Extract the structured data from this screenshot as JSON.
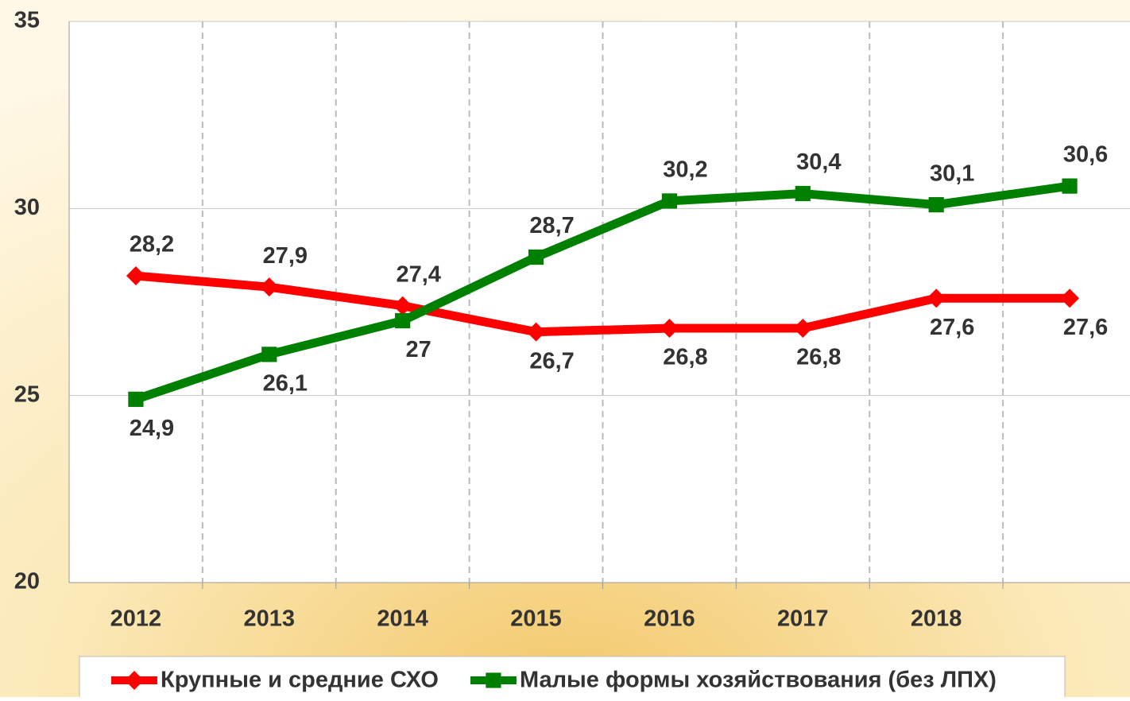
{
  "chart_data": {
    "type": "line",
    "categories": [
      "2012",
      "2013",
      "2014",
      "2015",
      "2016",
      "2017",
      "2018",
      null
    ],
    "series": [
      {
        "name": "Крупные и средние СХО",
        "color": "#ff0000",
        "marker": "diamond",
        "values": [
          28.2,
          27.9,
          27.4,
          26.7,
          26.8,
          26.8,
          27.6,
          27.6
        ],
        "value_labels": [
          "28,2",
          "27,9",
          "27,4",
          "26,7",
          "26,8",
          "26,8",
          "27,6",
          "27,6"
        ]
      },
      {
        "name": "Малые формы хозяйствования (без ЛПХ)",
        "color": "#008000",
        "marker": "square",
        "values": [
          24.9,
          26.1,
          27,
          28.7,
          30.2,
          30.4,
          30.1,
          30.6
        ],
        "value_labels": [
          "24,9",
          "26,1",
          "27",
          "28,7",
          "30,2",
          "30,4",
          "30,1",
          "30,6"
        ]
      }
    ],
    "ylim": [
      20,
      35
    ],
    "yticks": [
      20,
      25,
      30,
      35
    ],
    "grid": true,
    "legend": "bottom"
  }
}
